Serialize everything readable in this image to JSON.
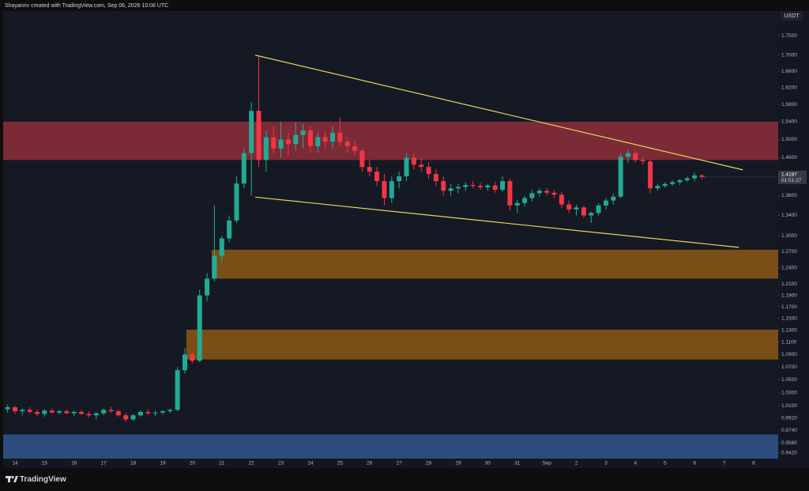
{
  "chart_data": {
    "type": "candlestick",
    "title": "Shayannv created with TradingView.com, Sep 06, 2026 10:08 UTC",
    "currency": "USDT",
    "countdown": "01:51:27",
    "brand": "TradingView",
    "log_scale": true,
    "grid": false,
    "up_color": "#22ab94",
    "down_color": "#f23645",
    "x": [
      -0.25,
      0,
      0.25,
      0.5,
      0.75,
      1,
      1.25,
      1.5,
      1.75,
      2,
      2.25,
      2.5,
      2.75,
      3,
      3.25,
      3.5,
      3.75,
      4,
      4.25,
      4.5,
      4.75,
      5,
      5.25,
      5.5,
      5.75,
      6,
      6.25,
      6.5,
      6.75,
      7,
      7.25,
      7.5,
      7.75,
      8,
      8.25,
      8.5,
      8.75,
      9,
      9.25,
      9.5,
      9.75,
      10,
      10.25,
      10.5,
      10.75,
      11,
      11.25,
      11.5,
      11.75,
      12,
      12.25,
      12.5,
      12.75,
      13,
      13.25,
      13.5,
      13.75,
      14,
      14.25,
      14.5,
      14.75,
      15,
      15.25,
      15.5,
      15.75,
      16,
      16.25,
      16.5,
      16.75,
      17,
      17.25,
      17.5,
      17.75,
      18,
      18.25,
      18.5,
      18.75,
      19,
      19.25,
      19.5,
      19.75,
      20,
      20.25,
      20.5,
      20.75,
      21,
      21.25,
      21.5,
      21.75,
      22,
      22.25,
      22.5,
      22.75,
      23,
      23.25
    ],
    "open": [
      1.005,
      1.008,
      1.002,
      1.004,
      1.001,
      0.998,
      1.003,
      1.0,
      1.002,
      0.999,
      1.001,
      0.998,
      0.996,
      0.999,
      1.004,
      1.002,
      0.996,
      0.99,
      0.996,
      1.001,
      0.999,
      1.0,
      1.002,
      1.004,
      1.065,
      1.09,
      1.08,
      1.19,
      1.22,
      1.262,
      1.295,
      1.33,
      1.405,
      1.47,
      1.565,
      1.455,
      1.505,
      1.48,
      1.5,
      1.49,
      1.51,
      1.52,
      1.485,
      1.505,
      1.495,
      1.515,
      1.495,
      1.485,
      1.475,
      1.44,
      1.43,
      1.41,
      1.375,
      1.41,
      1.42,
      1.46,
      1.445,
      1.44,
      1.425,
      1.41,
      1.39,
      1.395,
      1.398,
      1.402,
      1.4,
      1.397,
      1.401,
      1.392,
      1.41,
      1.36,
      1.365,
      1.375,
      1.385,
      1.39,
      1.386,
      1.382,
      1.362,
      1.352,
      1.356,
      1.34,
      1.345,
      1.36,
      1.37,
      1.378,
      1.462,
      1.47,
      1.455,
      1.452,
      1.395,
      1.4,
      1.404,
      1.408,
      1.412,
      1.416,
      1.422
    ],
    "high": [
      1.012,
      1.01,
      1.006,
      1.008,
      1.004,
      1.005,
      1.006,
      1.004,
      1.005,
      1.003,
      1.004,
      1.002,
      1.001,
      1.006,
      1.008,
      1.005,
      0.999,
      0.998,
      1.003,
      1.005,
      1.003,
      1.004,
      1.006,
      1.07,
      1.1,
      1.096,
      1.2,
      1.23,
      1.36,
      1.3,
      1.34,
      1.42,
      1.48,
      1.585,
      1.7,
      1.52,
      1.53,
      1.54,
      1.515,
      1.54,
      1.535,
      1.53,
      1.515,
      1.52,
      1.53,
      1.55,
      1.505,
      1.5,
      1.48,
      1.455,
      1.44,
      1.425,
      1.42,
      1.43,
      1.47,
      1.47,
      1.46,
      1.45,
      1.435,
      1.42,
      1.405,
      1.405,
      1.408,
      1.41,
      1.406,
      1.404,
      1.408,
      1.42,
      1.415,
      1.372,
      1.38,
      1.392,
      1.395,
      1.396,
      1.392,
      1.388,
      1.37,
      1.362,
      1.36,
      1.348,
      1.365,
      1.375,
      1.385,
      1.47,
      1.478,
      1.476,
      1.462,
      1.456,
      1.405,
      1.408,
      1.412,
      1.415,
      1.42,
      1.428,
      1.425
    ],
    "low": [
      1.0,
      0.998,
      0.996,
      0.999,
      0.995,
      0.994,
      0.999,
      0.997,
      0.998,
      0.995,
      0.997,
      0.993,
      0.99,
      0.996,
      1.0,
      0.994,
      0.986,
      0.988,
      0.994,
      0.996,
      0.995,
      0.997,
      0.999,
      1.002,
      1.06,
      1.076,
      1.078,
      1.18,
      1.215,
      1.25,
      1.288,
      1.325,
      1.395,
      1.38,
      1.44,
      1.43,
      1.47,
      1.46,
      1.465,
      1.475,
      1.48,
      1.47,
      1.47,
      1.48,
      1.48,
      1.485,
      1.47,
      1.465,
      1.43,
      1.42,
      1.4,
      1.36,
      1.365,
      1.395,
      1.41,
      1.435,
      1.43,
      1.415,
      1.4,
      1.38,
      1.38,
      1.385,
      1.39,
      1.395,
      1.392,
      1.39,
      1.386,
      1.388,
      1.35,
      1.345,
      1.358,
      1.368,
      1.378,
      1.38,
      1.375,
      1.355,
      1.345,
      1.34,
      1.335,
      1.325,
      1.34,
      1.352,
      1.362,
      1.375,
      1.448,
      1.45,
      1.445,
      1.385,
      1.39,
      1.396,
      1.4,
      1.402,
      1.408,
      1.41,
      1.415
    ],
    "close": [
      1.008,
      1.002,
      1.004,
      1.001,
      0.998,
      1.003,
      1.0,
      1.002,
      0.999,
      1.001,
      0.998,
      0.996,
      0.999,
      1.004,
      1.002,
      0.996,
      0.99,
      0.996,
      1.001,
      0.999,
      1.0,
      1.002,
      1.004,
      1.065,
      1.09,
      1.08,
      1.19,
      1.22,
      1.262,
      1.295,
      1.33,
      1.405,
      1.47,
      1.565,
      1.455,
      1.505,
      1.48,
      1.5,
      1.49,
      1.51,
      1.52,
      1.485,
      1.505,
      1.495,
      1.515,
      1.495,
      1.485,
      1.475,
      1.44,
      1.43,
      1.41,
      1.375,
      1.41,
      1.42,
      1.46,
      1.445,
      1.44,
      1.425,
      1.41,
      1.39,
      1.395,
      1.398,
      1.402,
      1.4,
      1.397,
      1.401,
      1.392,
      1.41,
      1.36,
      1.365,
      1.375,
      1.385,
      1.39,
      1.386,
      1.382,
      1.362,
      1.352,
      1.356,
      1.34,
      1.345,
      1.36,
      1.37,
      1.378,
      1.462,
      1.47,
      1.455,
      1.452,
      1.395,
      1.4,
      1.404,
      1.408,
      1.412,
      1.416,
      1.422,
      1.4187
    ],
    "zones": [
      {
        "low": 1.455,
        "high": 1.54,
        "x_start": -0.4,
        "color": "#7b2a36"
      },
      {
        "low": 1.22,
        "high": 1.2735,
        "x_start": 6.66,
        "color": "#7a4e17"
      },
      {
        "low": 1.082,
        "high": 1.131,
        "x_start": 5.8,
        "color": "#7a4e17"
      },
      {
        "low": 0.934,
        "high": 0.968,
        "x_start": -0.4,
        "color": "#2e4b7e"
      }
    ],
    "trendlines": [
      {
        "x1": 8.13,
        "y1": 1.7,
        "x2": 24.63,
        "y2": 1.434,
        "color": "#e6d35c"
      },
      {
        "x1": 8.13,
        "y1": 1.377,
        "x2": 24.5,
        "y2": 1.278,
        "color": "#e6d35c"
      }
    ],
    "xlim": [
      -0.4,
      25.83
    ],
    "ylim": [
      0.934,
      1.815
    ],
    "xticks": [
      {
        "value": 0,
        "label": "14"
      },
      {
        "value": 1,
        "label": "15"
      },
      {
        "value": 2,
        "label": "16"
      },
      {
        "value": 3,
        "label": "17"
      },
      {
        "value": 4,
        "label": "18"
      },
      {
        "value": 5,
        "label": "19"
      },
      {
        "value": 6,
        "label": "20"
      },
      {
        "value": 7,
        "label": "21"
      },
      {
        "value": 8,
        "label": "22"
      },
      {
        "value": 9,
        "label": "23"
      },
      {
        "value": 10,
        "label": "24"
      },
      {
        "value": 11,
        "label": "25"
      },
      {
        "value": 12,
        "label": "26"
      },
      {
        "value": 13,
        "label": "27"
      },
      {
        "value": 14,
        "label": "28"
      },
      {
        "value": 15,
        "label": "29"
      },
      {
        "value": 16,
        "label": "30"
      },
      {
        "value": 17,
        "label": "31"
      },
      {
        "value": 18,
        "label": "Sep"
      },
      {
        "value": 19,
        "label": "2"
      },
      {
        "value": 20,
        "label": "3"
      },
      {
        "value": 21,
        "label": "4"
      },
      {
        "value": 22,
        "label": "5"
      },
      {
        "value": 23,
        "label": "6"
      },
      {
        "value": 24,
        "label": "7"
      },
      {
        "value": 25,
        "label": "8"
      }
    ],
    "yticks": [
      {
        "value": 1.75,
        "label": "1.7500"
      },
      {
        "value": 1.7,
        "label": "1.7000"
      },
      {
        "value": 1.66,
        "label": "1.6600"
      },
      {
        "value": 1.62,
        "label": "1.6200"
      },
      {
        "value": 1.58,
        "label": "1.5800"
      },
      {
        "value": 1.54,
        "label": "1.5400"
      },
      {
        "value": 1.5,
        "label": "1.5000"
      },
      {
        "value": 1.46,
        "label": "1.4600"
      },
      {
        "value": 1.38,
        "label": "1.3800"
      },
      {
        "value": 1.34,
        "label": "1.3400"
      },
      {
        "value": 1.3,
        "label": "1.3000"
      },
      {
        "value": 1.27,
        "label": "1.2700"
      },
      {
        "value": 1.24,
        "label": "1.2400"
      },
      {
        "value": 1.21,
        "label": "1.2100"
      },
      {
        "value": 1.19,
        "label": "1.1900"
      },
      {
        "value": 1.17,
        "label": "1.1700"
      },
      {
        "value": 1.15,
        "label": "1.1500"
      },
      {
        "value": 1.13,
        "label": "1.1300"
      },
      {
        "value": 1.11,
        "label": "1.1100"
      },
      {
        "value": 1.09,
        "label": "1.0900"
      },
      {
        "value": 1.07,
        "label": "1.0700"
      },
      {
        "value": 1.05,
        "label": "1.0500"
      },
      {
        "value": 1.03,
        "label": "1.0300"
      },
      {
        "value": 1.01,
        "label": "1.0100"
      },
      {
        "value": 0.992,
        "label": "0.9920"
      },
      {
        "value": 0.974,
        "label": "0.9740"
      },
      {
        "value": 0.956,
        "label": "0.9560"
      },
      {
        "value": 0.942,
        "label": "0.9420"
      }
    ]
  }
}
